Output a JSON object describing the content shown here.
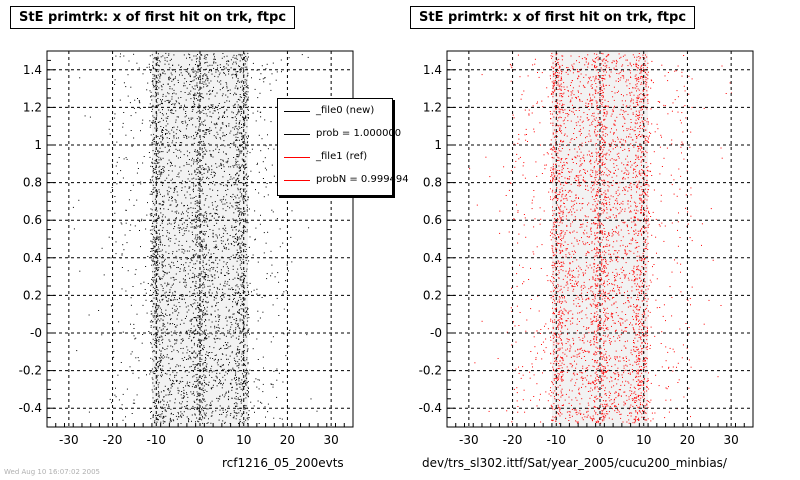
{
  "chart_data": [
    {
      "type": "scatter",
      "title": "StE primtrk: x of first hit on trk, ftpc",
      "footer": "rcf1216_05_200evts",
      "xlim": [
        -35,
        35
      ],
      "ylim": [
        -0.5,
        1.5
      ],
      "x_ticks": [
        -30,
        -20,
        -10,
        0,
        10,
        20,
        30
      ],
      "y_ticks": [
        -0.4,
        -0.2,
        0,
        0.2,
        0.4,
        0.6,
        0.8,
        1,
        1.2,
        1.4
      ],
      "x_tick_labels": [
        "-30",
        "-20",
        "-10",
        "0",
        "10",
        "20",
        "30"
      ],
      "y_tick_labels": [
        "-0.4",
        "-0.2",
        "-0",
        "0.2",
        "0.4",
        "0.6",
        "0.8",
        "1",
        "1.2",
        "1.4"
      ],
      "grid": true,
      "marker_color": "#000000",
      "density_profile": {
        "x_range": [
          -21,
          21
        ],
        "core_range": [
          -11,
          11
        ],
        "peaks": [
          -10,
          0,
          9.5
        ]
      },
      "legend": {
        "position": "top-right",
        "entries": [
          {
            "label": "_file0 (new)",
            "color": "#000000"
          },
          {
            "label": "prob = 1.000000",
            "color": "#000000"
          },
          {
            "label": "_file1 (ref)",
            "color": "#ff0000"
          },
          {
            "label": "probN = 0.999494",
            "color": "#ff0000"
          }
        ]
      }
    },
    {
      "type": "scatter",
      "title": "StE primtrk: x of first hit on trk, ftpc",
      "footer": "dev/trs_sl302.ittf/Sat/year_2005/cucu200_minbias/",
      "xlim": [
        -35,
        35
      ],
      "ylim": [
        -0.5,
        1.5
      ],
      "x_ticks": [
        -30,
        -20,
        -10,
        0,
        10,
        20,
        30
      ],
      "y_ticks": [
        -0.4,
        -0.2,
        0,
        0.2,
        0.4,
        0.6,
        0.8,
        1,
        1.2,
        1.4
      ],
      "x_tick_labels": [
        "-30",
        "-20",
        "-10",
        "0",
        "10",
        "20",
        "30"
      ],
      "y_tick_labels": [
        "-0.4",
        "-0.2",
        "-0",
        "0.2",
        "0.4",
        "0.6",
        "0.8",
        "1",
        "1.2",
        "1.4"
      ],
      "grid": true,
      "marker_color": "#ff0000",
      "density_profile": {
        "x_range": [
          -21,
          21
        ],
        "core_range": [
          -11,
          11
        ],
        "peaks": [
          -10,
          0,
          9.5
        ]
      }
    }
  ],
  "stamp": "Wed Aug 10 16:07:02 2005"
}
